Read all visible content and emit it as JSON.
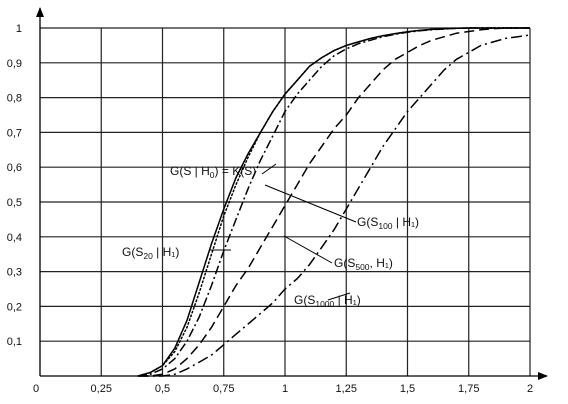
{
  "chart_data": {
    "type": "line",
    "title": "",
    "xlabel": "",
    "ylabel": "",
    "xlim": [
      0,
      2
    ],
    "ylim": [
      0,
      1
    ],
    "grid": true,
    "legend": "none",
    "x_ticks": [
      0.25,
      0.5,
      0.75,
      1,
      1.25,
      1.5,
      1.75,
      2
    ],
    "x_tick_labels": [
      "0,25",
      "0,5",
      "0,75",
      "1",
      "1,25",
      "1,5",
      "1,75",
      "2"
    ],
    "y_ticks": [
      0.1,
      0.2,
      0.3,
      0.4,
      0.5,
      0.6,
      0.7,
      0.8,
      0.9,
      1
    ],
    "y_tick_labels": [
      "0,1",
      "0,2",
      "0,3",
      "0,4",
      "0,5",
      "0,6",
      "0,7",
      "0,8",
      "0,9",
      "1"
    ],
    "origin_label": "0",
    "x": [
      0.4,
      0.45,
      0.5,
      0.55,
      0.6,
      0.65,
      0.7,
      0.75,
      0.8,
      0.85,
      0.9,
      0.95,
      1.0,
      1.05,
      1.1,
      1.15,
      1.2,
      1.25,
      1.3,
      1.35,
      1.4,
      1.45,
      1.5,
      1.55,
      1.6,
      1.65,
      1.7,
      1.75,
      1.8,
      1.85,
      1.9,
      1.95,
      2.0
    ],
    "series": [
      {
        "style": "solid",
        "values": [
          0.0,
          0.01,
          0.03,
          0.08,
          0.16,
          0.27,
          0.38,
          0.48,
          0.57,
          0.64,
          0.7,
          0.76,
          0.81,
          0.85,
          0.89,
          0.915,
          0.935,
          0.95,
          0.96,
          0.97,
          0.978,
          0.984,
          0.989,
          0.993,
          0.996,
          0.998,
          0.999,
          1.0,
          1.0,
          1.0,
          1.0,
          1.0,
          1.0
        ]
      },
      {
        "style": "dotted",
        "values": [
          0.0,
          0.01,
          0.03,
          0.07,
          0.14,
          0.24,
          0.35,
          0.46,
          0.55,
          0.63,
          0.7,
          0.76,
          0.81,
          0.85,
          0.89,
          0.915,
          0.935,
          0.95,
          0.96,
          0.97,
          0.978,
          0.984,
          0.989,
          0.993,
          0.996,
          0.998,
          0.999,
          1.0,
          1.0,
          1.0,
          1.0,
          1.0,
          1.0
        ]
      },
      {
        "style": "dash-dot",
        "values": [
          0.0,
          0.005,
          0.02,
          0.05,
          0.1,
          0.17,
          0.26,
          0.36,
          0.45,
          0.54,
          0.62,
          0.69,
          0.76,
          0.81,
          0.85,
          0.89,
          0.92,
          0.94,
          0.955,
          0.965,
          0.975,
          0.982,
          0.988,
          0.992,
          0.995,
          0.997,
          0.999,
          1.0,
          1.0,
          1.0,
          1.0,
          1.0,
          1.0
        ]
      },
      {
        "style": "dashed",
        "values": [
          0.0,
          0.0,
          0.005,
          0.02,
          0.05,
          0.09,
          0.14,
          0.2,
          0.26,
          0.31,
          0.37,
          0.43,
          0.49,
          0.55,
          0.61,
          0.66,
          0.71,
          0.75,
          0.8,
          0.84,
          0.88,
          0.91,
          0.93,
          0.95,
          0.965,
          0.975,
          0.985,
          0.99,
          0.995,
          0.998,
          1.0,
          1.0,
          1.0
        ]
      },
      {
        "style": "dash-dot-long",
        "values": [
          0.0,
          0.0,
          0.0,
          0.005,
          0.02,
          0.04,
          0.06,
          0.09,
          0.12,
          0.15,
          0.18,
          0.21,
          0.25,
          0.28,
          0.32,
          0.37,
          0.42,
          0.48,
          0.54,
          0.6,
          0.66,
          0.71,
          0.76,
          0.8,
          0.84,
          0.88,
          0.91,
          0.93,
          0.95,
          0.96,
          0.97,
          0.975,
          0.98
        ]
      }
    ],
    "annotations": [
      {
        "text": "G(S | H",
        "sub": "0",
        "tail": ") = K(S)"
      },
      {
        "text": "G(S",
        "sub": "100",
        "tail": " | H₁)"
      },
      {
        "text": "G(S",
        "sub": "500",
        "tail": ", H₁)"
      },
      {
        "text": "G(S",
        "sub": "20",
        "tail": " | H₁)"
      },
      {
        "text": "G(S",
        "sub": "1000",
        "tail": " | H₁)"
      }
    ]
  }
}
